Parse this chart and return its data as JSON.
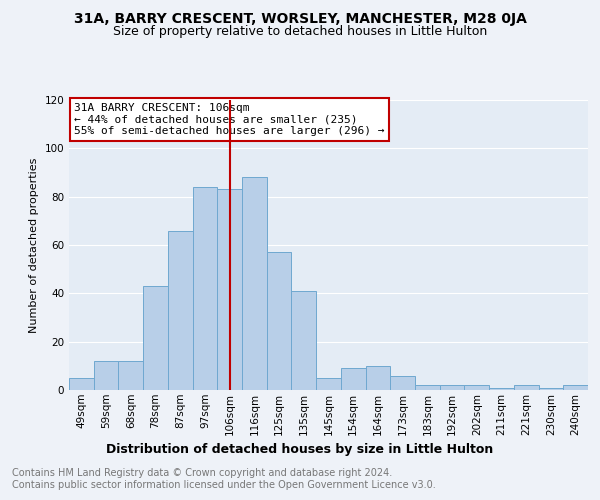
{
  "title": "31A, BARRY CRESCENT, WORSLEY, MANCHESTER, M28 0JA",
  "subtitle": "Size of property relative to detached houses in Little Hulton",
  "xlabel": "Distribution of detached houses by size in Little Hulton",
  "ylabel": "Number of detached properties",
  "categories": [
    "49sqm",
    "59sqm",
    "68sqm",
    "78sqm",
    "87sqm",
    "97sqm",
    "106sqm",
    "116sqm",
    "125sqm",
    "135sqm",
    "145sqm",
    "154sqm",
    "164sqm",
    "173sqm",
    "183sqm",
    "192sqm",
    "202sqm",
    "211sqm",
    "221sqm",
    "230sqm",
    "240sqm"
  ],
  "values": [
    5,
    12,
    12,
    43,
    66,
    84,
    83,
    88,
    57,
    41,
    5,
    9,
    10,
    6,
    2,
    2,
    2,
    1,
    2,
    1,
    2
  ],
  "bar_color": "#b8cfe8",
  "bar_edge_color": "#6fa8d0",
  "highlight_bar_index": 6,
  "highlight_color": "#c00000",
  "annotation_box_color": "#ffffff",
  "annotation_border_color": "#c00000",
  "annotation_text_line1": "31A BARRY CRESCENT: 106sqm",
  "annotation_text_line2": "← 44% of detached houses are smaller (235)",
  "annotation_text_line3": "55% of semi-detached houses are larger (296) →",
  "ylim": [
    0,
    120
  ],
  "yticks": [
    0,
    20,
    40,
    60,
    80,
    100,
    120
  ],
  "footer_line1": "Contains HM Land Registry data © Crown copyright and database right 2024.",
  "footer_line2": "Contains public sector information licensed under the Open Government Licence v3.0.",
  "background_color": "#eef2f8",
  "plot_bg_color": "#e4ecf5",
  "grid_color": "#ffffff",
  "title_fontsize": 10,
  "subtitle_fontsize": 9,
  "xlabel_fontsize": 9,
  "ylabel_fontsize": 8,
  "tick_fontsize": 7.5,
  "annotation_fontsize": 8,
  "footer_fontsize": 7
}
